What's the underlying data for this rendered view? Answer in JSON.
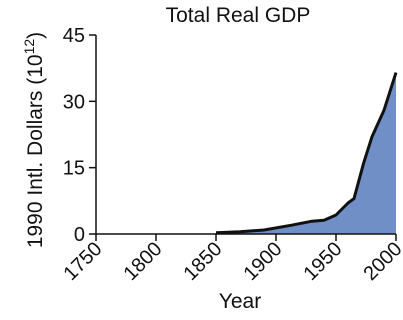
{
  "chart_data": {
    "type": "area",
    "title": "Total Real GDP",
    "xlabel": "Year",
    "ylabel": "1990 Intl. Dollars (10^12)",
    "xlim": [
      1750,
      2000
    ],
    "ylim": [
      0,
      45
    ],
    "xticks": [
      "1750",
      "1800",
      "1850",
      "1900",
      "1950",
      "2000"
    ],
    "yticks": [
      "0",
      "15",
      "30",
      "45"
    ],
    "grid": false,
    "fill_color": "#6f8fc6",
    "line_color": "#111111",
    "series": [
      {
        "x": [
          1850,
          1870,
          1890,
          1913,
          1930,
          1940,
          1950,
          1960,
          1965,
          1973,
          1980,
          1990,
          2000
        ],
        "values": [
          0.3,
          0.5,
          0.9,
          2.0,
          2.9,
          3.1,
          4.3,
          7.0,
          8.0,
          16.0,
          22.0,
          28.0,
          36.5
        ]
      }
    ]
  }
}
